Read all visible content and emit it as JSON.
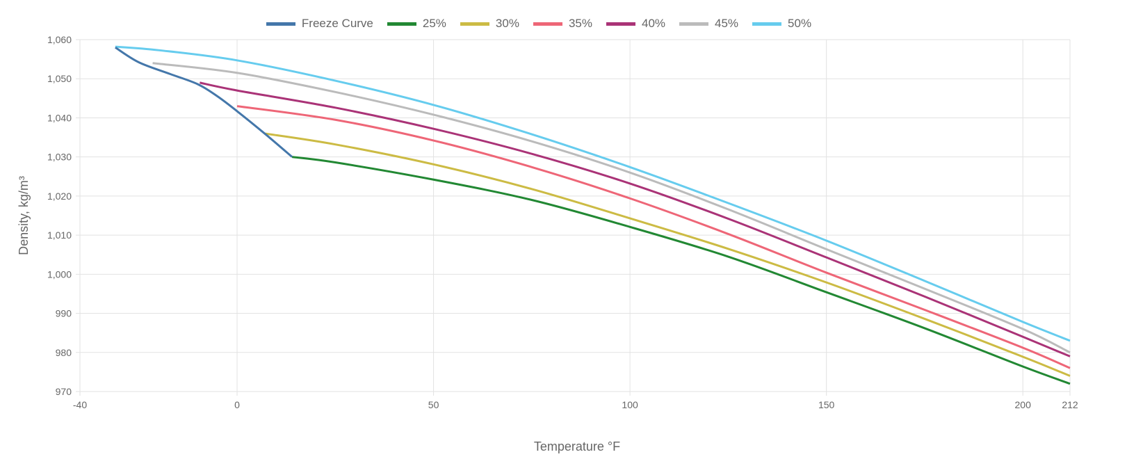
{
  "chart_data": {
    "type": "line",
    "xlabel": "Temperature °F",
    "ylabel": "Density, kg/m³",
    "xlim": [
      -40,
      212
    ],
    "ylim": [
      970,
      1060
    ],
    "xticks": [
      -40,
      0,
      50,
      100,
      150,
      200,
      212
    ],
    "yticks": [
      970,
      980,
      990,
      1000,
      1010,
      1020,
      1030,
      1040,
      1050,
      1060
    ],
    "ytick_labels": [
      "970",
      "980",
      "990",
      "1,000",
      "1,010",
      "1,020",
      "1,030",
      "1,040",
      "1,050",
      "1,060"
    ],
    "grid": true,
    "legend_position": "top",
    "series": [
      {
        "name": "Freeze Curve",
        "color": "#4477aa",
        "x": [
          -31,
          -25,
          -17,
          -10,
          -5,
          0,
          7,
          14
        ],
        "y": [
          1058,
          1054.2,
          1051.2,
          1048.6,
          1045.5,
          1041.7,
          1036,
          1030
        ]
      },
      {
        "name": "25%",
        "color": "#228833",
        "x": [
          14,
          25,
          50,
          75,
          100,
          125,
          150,
          175,
          200,
          212
        ],
        "y": [
          1030,
          1028.6,
          1024.2,
          1019,
          1012.1,
          1004.5,
          995.4,
          986.2,
          976.4,
          972
        ]
      },
      {
        "name": "30%",
        "color": "#ccbb44",
        "x": [
          7,
          25,
          50,
          75,
          100,
          125,
          150,
          175,
          200,
          212
        ],
        "y": [
          1036,
          1033.2,
          1028.1,
          1021.8,
          1014.3,
          1006.5,
          997.9,
          988.6,
          978.9,
          974
        ]
      },
      {
        "name": "35%",
        "color": "#ee6677",
        "x": [
          0,
          25,
          50,
          75,
          100,
          125,
          150,
          175,
          200,
          212
        ],
        "y": [
          1043,
          1039.5,
          1034.2,
          1027.4,
          1019.4,
          1010.3,
          1000.4,
          990.9,
          981.2,
          976
        ]
      },
      {
        "name": "40%",
        "color": "#aa3377",
        "x": [
          -9.5,
          0,
          25,
          50,
          75,
          100,
          125,
          150,
          175,
          200,
          212
        ],
        "y": [
          1049,
          1047,
          1042.6,
          1037.2,
          1030.8,
          1023.2,
          1014.2,
          1004.3,
          994.3,
          984,
          979
        ]
      },
      {
        "name": "45%",
        "color": "#bbbbbb",
        "x": [
          -21.5,
          0,
          25,
          50,
          75,
          100,
          125,
          150,
          175,
          200,
          212
        ],
        "y": [
          1054,
          1051.5,
          1046.6,
          1040.8,
          1034,
          1026,
          1016.6,
          1006.4,
          996.3,
          986,
          980
        ]
      },
      {
        "name": "50%",
        "color": "#66ccee",
        "x": [
          -31,
          -20,
          0,
          25,
          50,
          75,
          100,
          125,
          150,
          175,
          200,
          212
        ],
        "y": [
          1058.2,
          1057.3,
          1054.7,
          1049.5,
          1043.3,
          1035.8,
          1027.4,
          1018.2,
          1008.6,
          998.3,
          987.8,
          983
        ]
      }
    ]
  }
}
